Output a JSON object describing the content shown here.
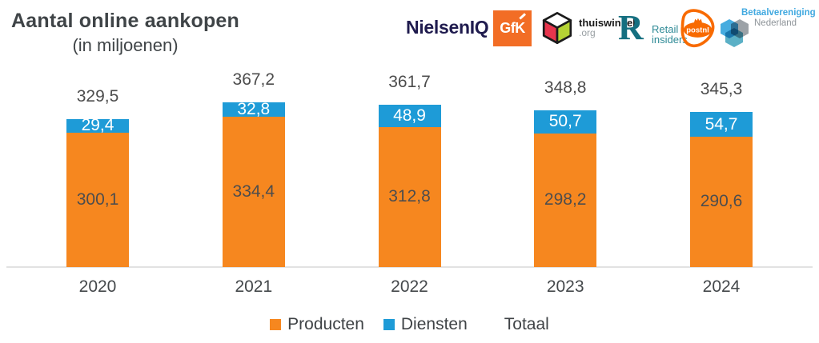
{
  "title": "Aantal online aankopen",
  "subtitle": "(in miljoenen)",
  "logos": {
    "nielseniq": "NielsenIQ",
    "gfk": "GfK",
    "thuiswinkel_name": "thuiswinkel",
    "thuiswinkel_org": ".org",
    "retail_r": "R",
    "retail_line1": "Retail",
    "retail_line2": "insiders",
    "postnl": "postnl",
    "betaal_line1": "Betaalvereniging",
    "betaal_line2": "Nederland"
  },
  "colors": {
    "producten": "#F6871F",
    "diensten": "#1E9BD7",
    "axis_line": "#E2E2E2",
    "text_dark": "#3F4447"
  },
  "chart_data": {
    "type": "bar",
    "stacked": true,
    "title": "Aantal online aankopen",
    "subtitle": "(in miljoenen)",
    "categories": [
      "2020",
      "2021",
      "2022",
      "2023",
      "2024"
    ],
    "series": [
      {
        "name": "Producten",
        "color": "#F6871F",
        "values": [
          300.1,
          334.4,
          312.8,
          298.2,
          290.6
        ]
      },
      {
        "name": "Diensten",
        "color": "#1E9BD7",
        "values": [
          29.4,
          32.8,
          48.9,
          50.7,
          54.7
        ]
      }
    ],
    "totals": [
      329.5,
      367.2,
      361.7,
      348.8,
      345.3
    ],
    "value_labels": {
      "producten": [
        "300,1",
        "334,4",
        "312,8",
        "298,2",
        "290,6"
      ],
      "diensten": [
        "29,4",
        "32,8",
        "48,9",
        "50,7",
        "54,7"
      ],
      "totals": [
        "329,5",
        "367,2",
        "361,7",
        "348,8",
        "345,3"
      ]
    },
    "legend": [
      "Producten",
      "Diensten",
      "Totaal"
    ],
    "legend_position": "bottom",
    "grid": false,
    "xlabel": "",
    "ylabel": "",
    "ylim": [
      0,
      400
    ]
  }
}
